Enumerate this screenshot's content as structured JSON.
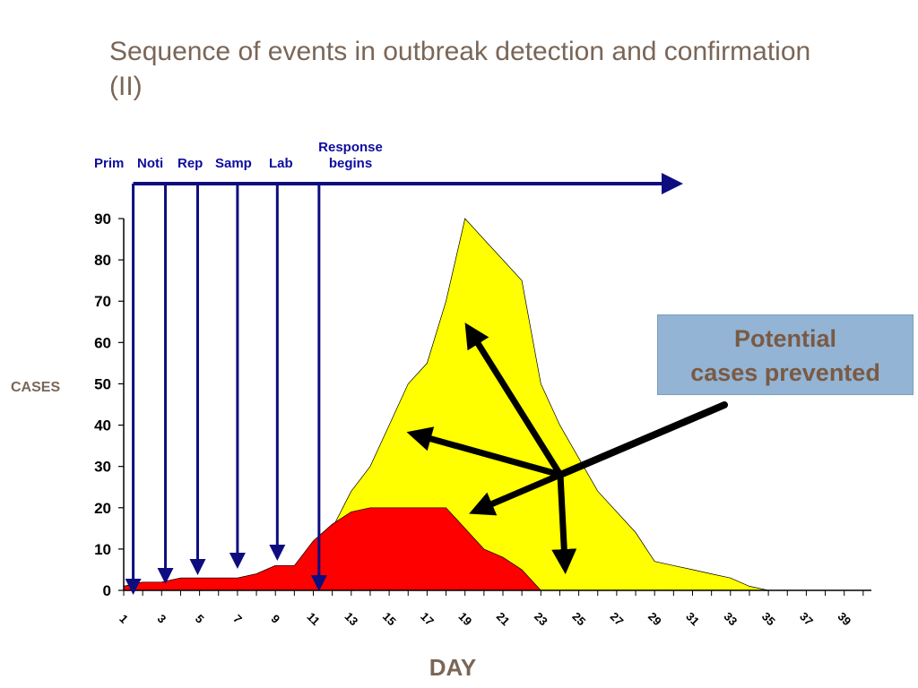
{
  "slide": {
    "title": "Sequence of events in outbreak detection and confirmation (II)"
  },
  "callout": {
    "line1": "Potential",
    "line2": "cases prevented"
  },
  "colors": {
    "title": "#7a6657",
    "prevented_area": "#ffff00",
    "actual_area": "#ff0000",
    "stage_arrows": "#0d0d80",
    "stage_labels": "#0d0d9e",
    "callout_bg": "#93b4d4",
    "callout_text": "#7a5a45",
    "pointer_arrows": "#000000"
  },
  "chart_data": {
    "type": "area",
    "xlabel": "DAY",
    "ylabel": "CASES",
    "xlim": [
      1,
      40
    ],
    "ylim": [
      0,
      90
    ],
    "x_ticks": [
      "1",
      "3",
      "5",
      "7",
      "9",
      "11",
      "13",
      "15",
      "17",
      "19",
      "21",
      "23",
      "25",
      "27",
      "29",
      "31",
      "33",
      "35",
      "37",
      "39"
    ],
    "y_ticks": [
      "0",
      "10",
      "20",
      "30",
      "40",
      "50",
      "60",
      "70",
      "80",
      "90"
    ],
    "grid": false,
    "series": [
      {
        "color": "#ffff00",
        "x": [
          1,
          2,
          3,
          4,
          5,
          6,
          7,
          8,
          9,
          10,
          11,
          12,
          13,
          14,
          15,
          16,
          17,
          18,
          19,
          20,
          21,
          22,
          23,
          24,
          25,
          26,
          27,
          28,
          29,
          30,
          31,
          32,
          33,
          34,
          35,
          36,
          37,
          38,
          39,
          40
        ],
        "values": [
          1,
          2,
          2,
          3,
          3,
          3,
          3,
          4,
          6,
          6,
          10,
          15,
          24,
          30,
          40,
          50,
          55,
          70,
          90,
          85,
          80,
          75,
          50,
          40,
          32,
          24,
          19,
          14,
          7,
          6,
          5,
          4,
          3,
          1,
          0,
          0,
          0,
          0,
          0,
          0
        ]
      },
      {
        "color": "#ff0000",
        "x": [
          1,
          2,
          3,
          4,
          5,
          6,
          7,
          8,
          9,
          10,
          11,
          12,
          13,
          14,
          15,
          16,
          17,
          18,
          19,
          20,
          21,
          22,
          23,
          24,
          25,
          26,
          27,
          28,
          29,
          30,
          31,
          32,
          33,
          34,
          35,
          36,
          37,
          38,
          39,
          40
        ],
        "values": [
          1,
          2,
          2,
          3,
          3,
          3,
          3,
          4,
          6,
          6,
          12,
          16,
          19,
          20,
          20,
          20,
          20,
          20,
          15,
          10,
          8,
          5,
          0,
          0,
          0,
          0,
          0,
          0,
          0,
          0,
          0,
          0,
          0,
          0,
          0,
          0,
          0,
          0,
          0,
          0
        ]
      }
    ],
    "stages": [
      {
        "label": "Prim",
        "day": 1.5
      },
      {
        "label": "Noti",
        "day": 3.2
      },
      {
        "label": "Rep",
        "day": 4.9
      },
      {
        "label": "Samp",
        "day": 7
      },
      {
        "label": "Lab",
        "day": 9.1
      },
      {
        "label": "Response begins",
        "day": 11.3
      }
    ]
  }
}
